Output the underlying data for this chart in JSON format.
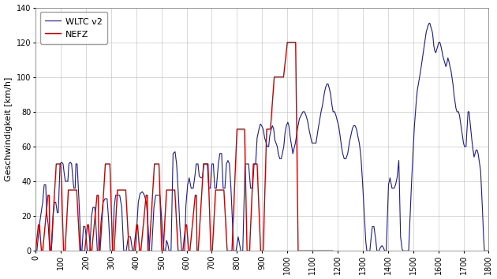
{
  "title": "",
  "xlabel": "",
  "ylabel": "Geschwindigkeit [km/h]",
  "wltc_color": "#1C1C8C",
  "nefz_color": "#CC0000",
  "wltc_label": "WLTC v2",
  "nefz_label": "NEFZ",
  "xlim": [
    0,
    1800
  ],
  "ylim": [
    0,
    140
  ],
  "xticks": [
    0,
    100,
    200,
    300,
    400,
    500,
    600,
    700,
    800,
    900,
    1000,
    1100,
    1200,
    1300,
    1400,
    1500,
    1600,
    1700,
    1800
  ],
  "yticks": [
    0,
    20,
    40,
    60,
    80,
    100,
    120,
    140
  ],
  "background_color": "#ffffff",
  "grid_color": "#bbbbbb",
  "linewidth_wltc": 0.8,
  "linewidth_nefz": 1.0
}
